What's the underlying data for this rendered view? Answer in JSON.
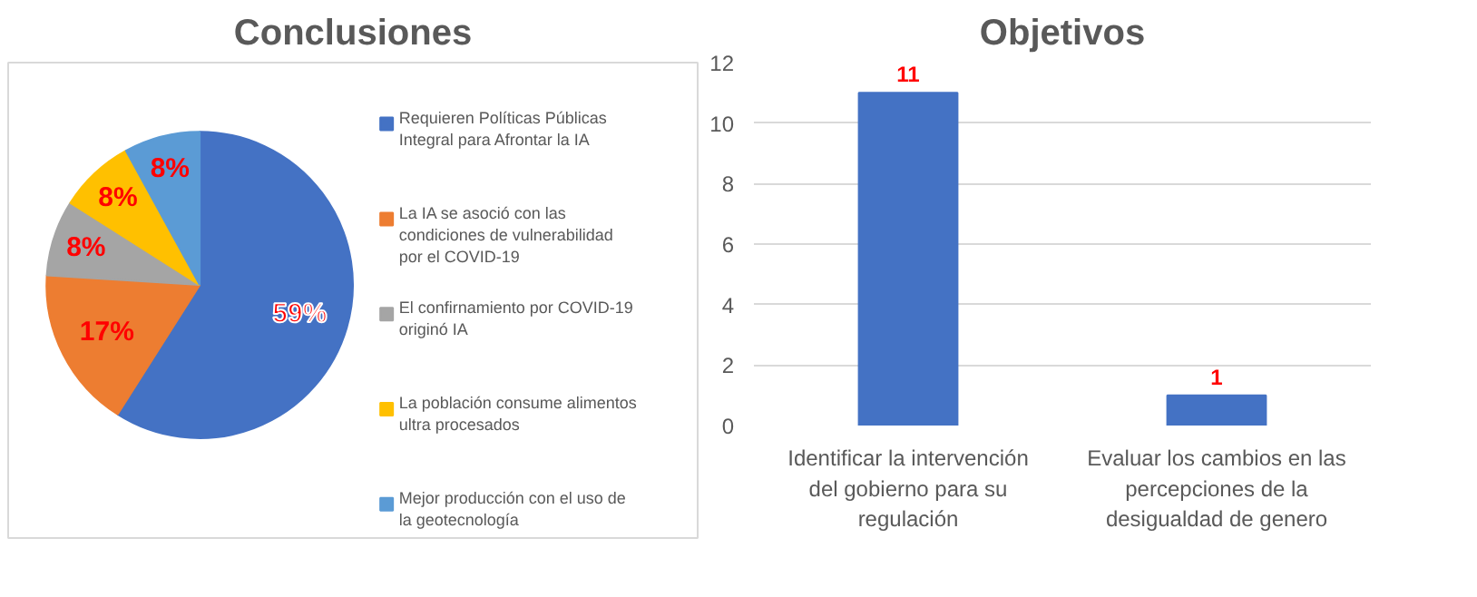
{
  "chart_data": [
    {
      "type": "pie",
      "title": "Conclusiones",
      "categories": [
        "Requieren Políticas Públicas Integral para Afrontar la IA",
        "La IA se asoció con las condiciones de vulnerabilidad por el COVID-19",
        "El confirnamiento por COVID-19 originó IA",
        "La población consume alimentos ultra procesados",
        "Mejor producción con el uso de la geotecnología"
      ],
      "values": [
        59,
        17,
        8,
        8,
        8
      ],
      "colors": [
        "#4472c4",
        "#ed7d31",
        "#a5a5a5",
        "#ffc000",
        "#5b9bd5"
      ],
      "value_labels": [
        "59%",
        "17%",
        "8%",
        "8%",
        "8%"
      ],
      "legend": "right"
    },
    {
      "type": "bar",
      "title": "Objetivos",
      "categories": [
        "Identificar la intervención del gobierno para su regulación",
        "Evaluar los cambios en las percepciones de la desigualdad de genero"
      ],
      "values": [
        11,
        1
      ],
      "color": "#4472c4",
      "ylim": [
        0,
        12
      ],
      "yticks": [
        0,
        2,
        4,
        6,
        8,
        10,
        12
      ],
      "grid": "y",
      "data_labels": true
    }
  ]
}
